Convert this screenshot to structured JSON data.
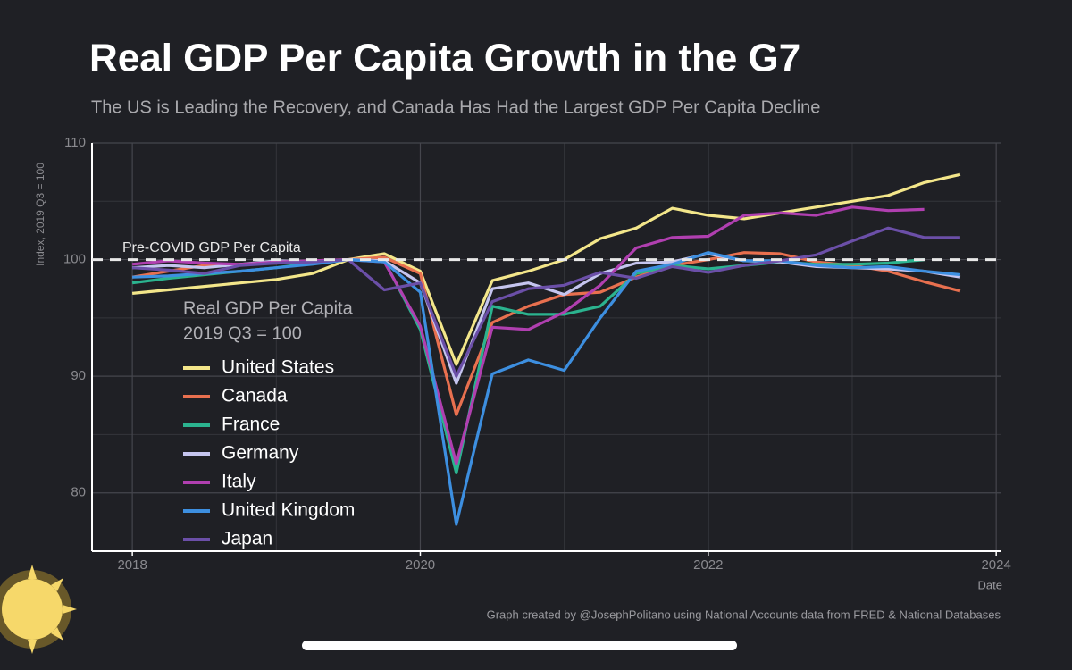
{
  "chart_data": {
    "type": "line",
    "title": "Real GDP Per Capita Growth in the G7",
    "subtitle": "The US is Leading the Recovery, and Canada Has Had the Largest GDP Per Capita Decline",
    "y_label": "Index, 2019 Q3 = 100",
    "x_label": "Date",
    "caption": "Graph created by @JosephPolitano using National Accounts data from FRED & National Databases",
    "legend_title": [
      "Real GDP Per Capita",
      "2019 Q3 = 100"
    ],
    "legend_position": "left",
    "grid": true,
    "reference_line": {
      "value": 100,
      "label": "Pre-COVID GDP Per Capita",
      "color": "#e8e8e8"
    },
    "xlim": [
      2017.72,
      2024.03
    ],
    "xticks": [
      2018,
      2020,
      2022,
      2024
    ],
    "ylim": [
      75,
      110
    ],
    "yticks": [
      80,
      90,
      100,
      110
    ],
    "x": [
      2018,
      2018.25,
      2018.5,
      2018.75,
      2019,
      2019.25,
      2019.5,
      2019.75,
      2020,
      2020.25,
      2020.5,
      2020.75,
      2021,
      2021.25,
      2021.5,
      2021.75,
      2022,
      2022.25,
      2022.5,
      2022.75,
      2023,
      2023.25,
      2023.5,
      2023.75
    ],
    "series": [
      {
        "name": "United States",
        "color": "#f3e68a",
        "values": [
          97.1,
          97.4,
          97.7,
          98.0,
          98.3,
          98.8,
          100,
          100.5,
          99.0,
          91.0,
          98.2,
          99.0,
          100.0,
          101.8,
          102.7,
          104.4,
          103.8,
          103.5,
          104.0,
          104.5,
          105.0,
          105.5,
          106.6,
          107.3
        ]
      },
      {
        "name": "Canada",
        "color": "#e8704f",
        "values": [
          98.5,
          99.0,
          99.5,
          99.6,
          99.7,
          99.9,
          100,
          100.2,
          98.8,
          86.7,
          94.6,
          96.0,
          97.0,
          97.2,
          98.5,
          99.5,
          100.0,
          100.6,
          100.5,
          99.8,
          99.5,
          99.0,
          98.1,
          97.3
        ]
      },
      {
        "name": "France",
        "color": "#2bb38f",
        "values": [
          98.0,
          98.4,
          98.7,
          99.0,
          99.3,
          99.7,
          100,
          99.9,
          94.0,
          81.7,
          96.0,
          95.3,
          95.3,
          96.0,
          98.8,
          99.5,
          99.2,
          99.5,
          99.8,
          99.6,
          99.6,
          99.7,
          100.0,
          null
        ]
      },
      {
        "name": "Germany",
        "color": "#c5c5ef",
        "values": [
          99.3,
          99.5,
          99.3,
          99.6,
          99.9,
          99.8,
          100,
          99.9,
          98.0,
          89.4,
          97.5,
          98.0,
          97.0,
          98.8,
          99.7,
          99.8,
          100.5,
          99.9,
          99.8,
          99.4,
          99.3,
          99.2,
          99.0,
          98.5
        ]
      },
      {
        "name": "Italy",
        "color": "#b03fb0",
        "values": [
          99.6,
          99.9,
          99.7,
          99.6,
          99.8,
          99.9,
          100,
          99.8,
          94.3,
          82.5,
          94.2,
          94.0,
          95.5,
          97.8,
          101.0,
          101.9,
          102.0,
          103.8,
          104.0,
          103.8,
          104.5,
          104.2,
          104.3,
          null
        ]
      },
      {
        "name": "United Kingdom",
        "color": "#3d8fe0",
        "values": [
          98.5,
          98.6,
          98.8,
          99.0,
          99.3,
          99.6,
          100,
          99.8,
          97.2,
          77.3,
          90.2,
          91.4,
          90.5,
          95.0,
          99.0,
          99.6,
          100.6,
          99.9,
          99.9,
          99.5,
          99.3,
          99.4,
          99.0,
          98.7
        ]
      },
      {
        "name": "Japan",
        "color": "#6b4fa8",
        "values": [
          99.3,
          99.1,
          98.8,
          99.5,
          99.7,
          99.8,
          100,
          97.4,
          98.0,
          90.0,
          96.4,
          97.5,
          97.8,
          98.9,
          98.4,
          99.4,
          98.9,
          99.5,
          99.9,
          100.4,
          101.6,
          102.7,
          101.9,
          101.9
        ]
      }
    ]
  }
}
